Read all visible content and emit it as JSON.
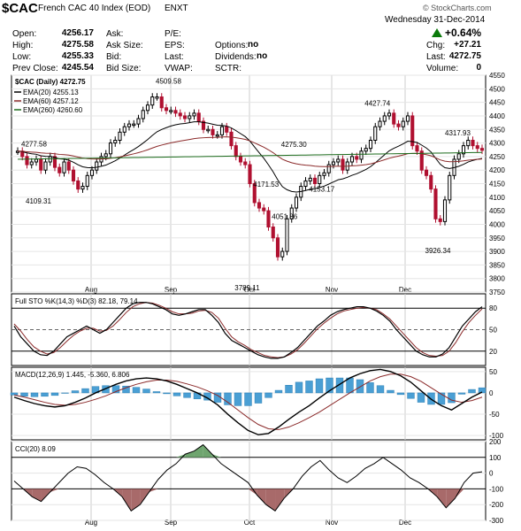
{
  "header": {
    "symbol": "$CAC",
    "name": "French CAC 40 Index (EOD)",
    "exchange": "ENXT",
    "brand": "© StockCharts.com",
    "date": "Wednesday 31-Dec-2014",
    "change_pct": "+0.64%",
    "up_color": "#0a7a0a"
  },
  "quote": {
    "open_label": "Open:",
    "open": "4256.17",
    "high_label": "High:",
    "high": "4275.58",
    "low_label": "Low:",
    "low": "4255.33",
    "prev_label": "Prev Close:",
    "prev": "4245.54",
    "ask_label": "Ask:",
    "asksize_label": "Ask Size:",
    "bid_label": "Bid:",
    "bidsize_label": "Bid Size:",
    "pe_label": "P/E:",
    "eps_label": "EPS:",
    "last_label2": "Last:",
    "vwap_label": "VWAP:",
    "options_label": "Options:",
    "options": "no",
    "div_label": "Dividends:",
    "div": "no",
    "sctr_label": "SCTR:",
    "chg_label": "Chg:",
    "chg": "+27.21",
    "last_label": "Last:",
    "last": "4272.75",
    "volume_label": "Volume:",
    "volume": "0"
  },
  "chart_data": [
    {
      "type": "candlestick",
      "title": "$CAC (Daily) 4272.75",
      "legend": [
        {
          "name": "EMA(20) 4255.13",
          "color": "#000000"
        },
        {
          "name": "EMA(60) 4257.12",
          "color": "#8b2a2a"
        },
        {
          "name": "EMA(260) 4260.60",
          "color": "#1a6a1a"
        }
      ],
      "ylim": [
        3750,
        4550
      ],
      "y_ticks": [
        3750,
        3800,
        3850,
        3900,
        3950,
        4000,
        4050,
        4100,
        4150,
        4200,
        4250,
        4300,
        4350,
        4400,
        4450,
        4500,
        4550
      ],
      "x_month_labels": [
        "Aug",
        "Sep",
        "Oct",
        "Nov",
        "Dec"
      ],
      "annotations": [
        {
          "text": "4277.58",
          "value": 4277.58
        },
        {
          "text": "4109.31",
          "value": 4109.31
        },
        {
          "text": "4509.58",
          "value": 4509.58
        },
        {
          "text": "3789.11",
          "value": 3789.11
        },
        {
          "text": "4171.53",
          "value": 4171.53
        },
        {
          "text": "4051.86",
          "value": 4051.86
        },
        {
          "text": "4275.30",
          "value": 4275.3
        },
        {
          "text": "4153.17",
          "value": 4153.17
        },
        {
          "text": "4427.74",
          "value": 4427.74
        },
        {
          "text": "3926.34",
          "value": 3926.34
        },
        {
          "text": "4317.93",
          "value": 4317.93
        }
      ],
      "close_path": [
        4270,
        4250,
        4220,
        4230,
        4240,
        4200,
        4230,
        4250,
        4210,
        4190,
        4230,
        4200,
        4160,
        4130,
        4140,
        4180,
        4200,
        4230,
        4250,
        4260,
        4300,
        4310,
        4340,
        4360,
        4370,
        4370,
        4390,
        4420,
        4440,
        4470,
        4470,
        4430,
        4420,
        4420,
        4410,
        4400,
        4390,
        4400,
        4410,
        4380,
        4350,
        4350,
        4330,
        4330,
        4360,
        4340,
        4290,
        4250,
        4230,
        4220,
        4150,
        4080,
        4060,
        4050,
        3990,
        3950,
        3880,
        3900,
        4020,
        4060,
        4100,
        4140,
        4160,
        4170,
        4150,
        4180,
        4190,
        4220,
        4230,
        4240,
        4200,
        4230,
        4250,
        4240,
        4270,
        4280,
        4310,
        4360,
        4380,
        4400,
        4410,
        4370,
        4360,
        4380,
        4400,
        4290,
        4270,
        4200,
        4180,
        4130,
        4020,
        4010,
        4090,
        4180,
        4240,
        4260,
        4290,
        4310,
        4290,
        4280,
        4273
      ]
    },
    {
      "type": "line",
      "title": "Full STO %K(14,3) %D(3) 82.18, 79.14",
      "ylim": [
        0,
        100
      ],
      "y_ticks": [
        20,
        50,
        80
      ],
      "series": [
        {
          "name": "%K",
          "values": [
            55,
            40,
            30,
            20,
            15,
            14,
            20,
            30,
            40,
            45,
            50,
            55,
            50,
            45,
            50,
            60,
            70,
            80,
            86,
            88,
            88,
            86,
            82,
            78,
            72,
            70,
            72,
            75,
            78,
            78,
            70,
            60,
            45,
            35,
            30,
            25,
            20,
            15,
            12,
            10,
            10,
            12,
            18,
            25,
            35,
            45,
            55,
            62,
            70,
            75,
            78,
            80,
            82,
            82,
            80,
            76,
            70,
            62,
            50,
            40,
            30,
            20,
            15,
            12,
            12,
            16,
            25,
            40,
            55,
            65,
            75,
            82
          ]
        },
        {
          "name": "%D",
          "values": [
            58,
            48,
            36,
            26,
            20,
            16,
            18,
            25,
            34,
            42,
            48,
            52,
            52,
            48,
            49,
            55,
            64,
            74,
            82,
            86,
            88,
            87,
            84,
            80,
            75,
            72,
            72,
            73,
            76,
            77,
            74,
            66,
            52,
            40,
            33,
            28,
            22,
            18,
            14,
            12,
            11,
            12,
            16,
            22,
            31,
            41,
            51,
            59,
            66,
            72,
            76,
            78,
            80,
            81,
            80,
            78,
            72,
            65,
            55,
            45,
            35,
            25,
            18,
            14,
            13,
            14,
            20,
            32,
            47,
            60,
            70,
            79
          ]
        }
      ]
    },
    {
      "type": "bar+line",
      "title": "MACD(12,26,9) 1.445, -5.360, 6.806",
      "ylim": [
        -110,
        60
      ],
      "y_ticks": [
        50,
        0,
        -50,
        -100
      ],
      "series": [
        {
          "name": "MACD",
          "values": [
            -10,
            -18,
            -25,
            -30,
            -33,
            -30,
            -22,
            -12,
            0,
            10,
            20,
            28,
            33,
            35,
            33,
            28,
            20,
            10,
            0,
            -12,
            -28,
            -50,
            -70,
            -88,
            -98,
            -95,
            -80,
            -62,
            -45,
            -30,
            -12,
            5,
            20,
            35,
            45,
            52,
            55,
            50,
            40,
            25,
            5,
            -15,
            -30,
            -40,
            -25,
            -10,
            2
          ]
        },
        {
          "name": "Signal",
          "values": [
            -5,
            -10,
            -16,
            -22,
            -27,
            -29,
            -27,
            -22,
            -15,
            -7,
            3,
            12,
            20,
            26,
            30,
            30,
            27,
            21,
            14,
            5,
            -6,
            -22,
            -40,
            -58,
            -74,
            -84,
            -86,
            -80,
            -70,
            -58,
            -45,
            -30,
            -15,
            0,
            14,
            28,
            38,
            44,
            44,
            38,
            27,
            12,
            -3,
            -17,
            -22,
            -18,
            -10
          ]
        },
        {
          "name": "Histogram",
          "values": [
            -5,
            -8,
            -9,
            -8,
            -6,
            -1,
            5,
            10,
            15,
            17,
            17,
            16,
            13,
            9,
            3,
            -2,
            -7,
            -11,
            -14,
            -17,
            -22,
            -28,
            -30,
            -30,
            -24,
            -11,
            6,
            18,
            25,
            28,
            33,
            35,
            35,
            35,
            31,
            24,
            17,
            6,
            -4,
            -13,
            -22,
            -27,
            -27,
            -23,
            -3,
            8,
            12
          ]
        }
      ]
    },
    {
      "type": "line",
      "title": "CCI(20) 8.09",
      "ylim": [
        -300,
        200
      ],
      "y_ticks": [
        200,
        100,
        0,
        -100,
        -200,
        -300
      ],
      "series": [
        {
          "name": "CCI",
          "values": [
            -50,
            -100,
            -150,
            -180,
            -120,
            -60,
            0,
            40,
            30,
            -10,
            -60,
            -100,
            -150,
            -240,
            -200,
            -120,
            -40,
            20,
            60,
            120,
            140,
            180,
            120,
            60,
            20,
            -20,
            -60,
            -140,
            -200,
            -240,
            -160,
            -100,
            -20,
            40,
            80,
            20,
            -30,
            -60,
            -20,
            30,
            60,
            100,
            60,
            20,
            -30,
            -60,
            -100,
            -150,
            -220,
            -160,
            -60,
            0,
            8
          ]
        }
      ]
    }
  ]
}
